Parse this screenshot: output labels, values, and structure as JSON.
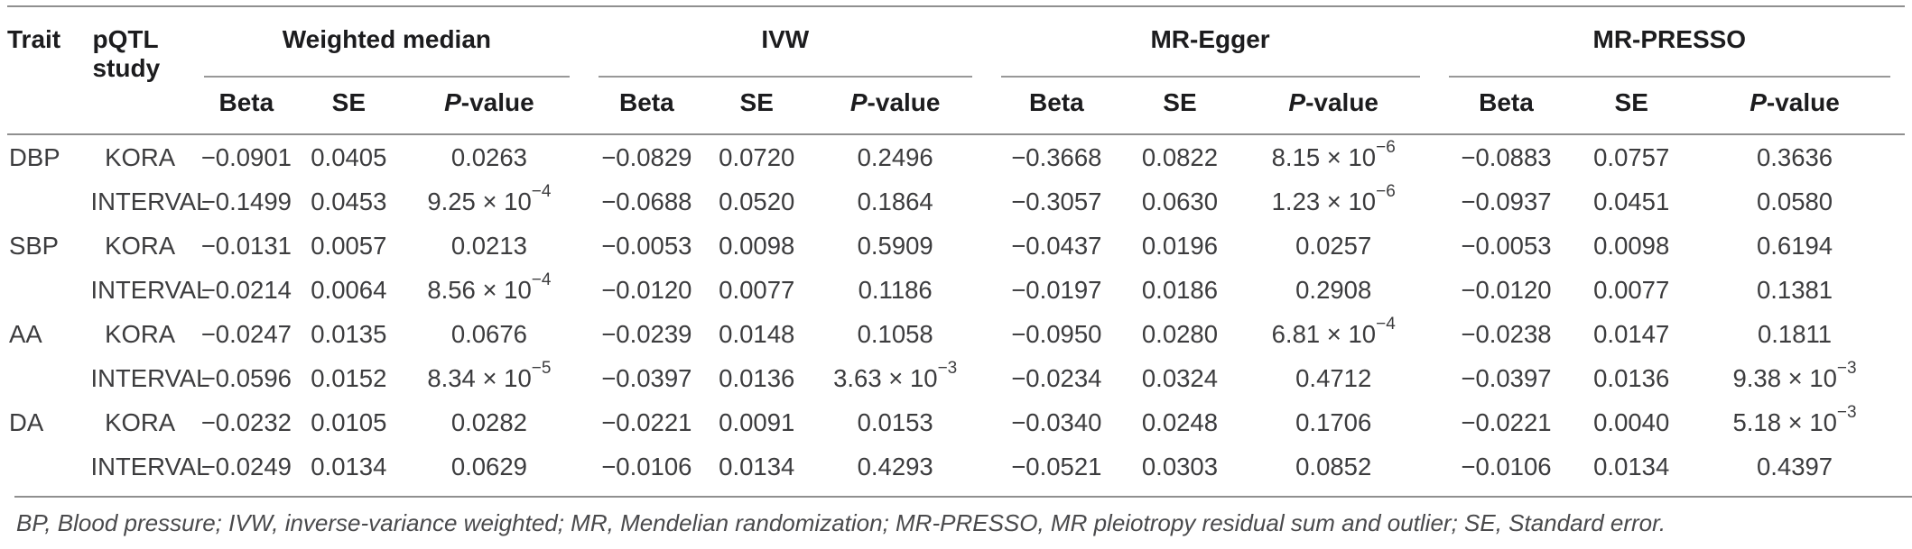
{
  "colors": {
    "rule_gray": "#8f8f8f",
    "header_text": "#1c1c1e",
    "body_text": "#3c3c3e",
    "footnote_text": "#4a4a4c"
  },
  "table": {
    "col_headers": {
      "trait": "Trait",
      "study": "pQTL study"
    },
    "groups": [
      {
        "label": "Weighted median"
      },
      {
        "label": "IVW"
      },
      {
        "label": "MR-Egger"
      },
      {
        "label": "MR-PRESSO"
      }
    ],
    "subheader": {
      "beta": "Beta",
      "se": "SE",
      "p_italic": "P",
      "p_rest": "-value"
    },
    "rows": [
      {
        "trait": "DBP",
        "study": "KORA",
        "values": [
          "−0.0901",
          "0.0405",
          "0.0263",
          "−0.0829",
          "0.0720",
          "0.2496",
          "−0.3668",
          "0.0822",
          "8.15 × 10^−6",
          "−0.0883",
          "0.0757",
          "0.3636"
        ]
      },
      {
        "trait": "",
        "study": "INTERVAL",
        "values": [
          "−0.1499",
          "0.0453",
          "9.25 × 10^−4",
          "−0.0688",
          "0.0520",
          "0.1864",
          "−0.3057",
          "0.0630",
          "1.23 × 10^−6",
          "−0.0937",
          "0.0451",
          "0.0580"
        ]
      },
      {
        "trait": "SBP",
        "study": "KORA",
        "values": [
          "−0.0131",
          "0.0057",
          "0.0213",
          "−0.0053",
          "0.0098",
          "0.5909",
          "−0.0437",
          "0.0196",
          "0.0257",
          "−0.0053",
          "0.0098",
          "0.6194"
        ]
      },
      {
        "trait": "",
        "study": "INTERVAL",
        "values": [
          "−0.0214",
          "0.0064",
          "8.56 × 10^−4",
          "−0.0120",
          "0.0077",
          "0.1186",
          "−0.0197",
          "0.0186",
          "0.2908",
          "−0.0120",
          "0.0077",
          "0.1381"
        ]
      },
      {
        "trait": "AA",
        "study": "KORA",
        "values": [
          "−0.0247",
          "0.0135",
          "0.0676",
          "−0.0239",
          "0.0148",
          "0.1058",
          "−0.0950",
          "0.0280",
          "6.81 × 10^−4",
          "−0.0238",
          "0.0147",
          "0.1811"
        ]
      },
      {
        "trait": "",
        "study": "INTERVAL",
        "values": [
          "−0.0596",
          "0.0152",
          "8.34 × 10^−5",
          "−0.0397",
          "0.0136",
          "3.63 × 10^−3",
          "−0.0234",
          "0.0324",
          "0.4712",
          "−0.0397",
          "0.0136",
          "9.38 × 10^−3"
        ]
      },
      {
        "trait": "DA",
        "study": "KORA",
        "values": [
          "−0.0232",
          "0.0105",
          "0.0282",
          "−0.0221",
          "0.0091",
          "0.0153",
          "−0.0340",
          "0.0248",
          "0.1706",
          "−0.0221",
          "0.0040",
          "5.18 × 10^−3"
        ]
      },
      {
        "trait": "",
        "study": "INTERVAL",
        "values": [
          "−0.0249",
          "0.0134",
          "0.0629",
          "−0.0106",
          "0.0134",
          "0.4293",
          "−0.0521",
          "0.0303",
          "0.0852",
          "−0.0106",
          "0.0134",
          "0.4397"
        ]
      }
    ],
    "footnote": "BP, Blood pressure; IVW, inverse-variance weighted; MR, Mendelian randomization; MR-PRESSO, MR pleiotropy residual sum and outlier; SE, Standard error."
  }
}
